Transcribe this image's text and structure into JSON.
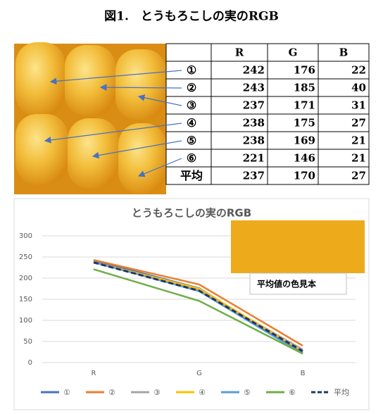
{
  "title": "図1.　とうもろこしの実のRGB",
  "table": {
    "columns": [
      "R",
      "G",
      "B"
    ],
    "rows": [
      {
        "label": "①",
        "values": [
          242,
          176,
          22
        ]
      },
      {
        "label": "②",
        "values": [
          243,
          185,
          40
        ]
      },
      {
        "label": "③",
        "values": [
          237,
          171,
          31
        ]
      },
      {
        "label": "④",
        "values": [
          238,
          175,
          27
        ]
      },
      {
        "label": "⑤",
        "values": [
          238,
          169,
          21
        ]
      },
      {
        "label": "⑥",
        "values": [
          221,
          146,
          21
        ]
      },
      {
        "label": "平均",
        "values": [
          237,
          170,
          27
        ]
      }
    ]
  },
  "chart_data": {
    "type": "line",
    "title": "とうもろこしの実のRGB",
    "categories": [
      "R",
      "G",
      "B"
    ],
    "series": [
      {
        "name": "①",
        "color": "#4472c4",
        "values": [
          242,
          176,
          22
        ]
      },
      {
        "name": "②",
        "color": "#ed7d31",
        "values": [
          243,
          185,
          40
        ]
      },
      {
        "name": "③",
        "color": "#a5a5a5",
        "values": [
          237,
          171,
          31
        ]
      },
      {
        "name": "④",
        "color": "#ffc000",
        "values": [
          238,
          175,
          27
        ]
      },
      {
        "name": "⑤",
        "color": "#5b9bd5",
        "values": [
          238,
          169,
          21
        ]
      },
      {
        "name": "⑥",
        "color": "#70ad47",
        "values": [
          221,
          146,
          21
        ]
      },
      {
        "name": "平均",
        "color": "#203864",
        "dashed": true,
        "values": [
          237,
          170,
          27
        ]
      }
    ],
    "ylim": [
      0,
      300
    ],
    "yticks": [
      0,
      50,
      100,
      150,
      200,
      250,
      300
    ],
    "grid": true,
    "legend": "bottom",
    "swatch_label": "平均値の色見本"
  }
}
